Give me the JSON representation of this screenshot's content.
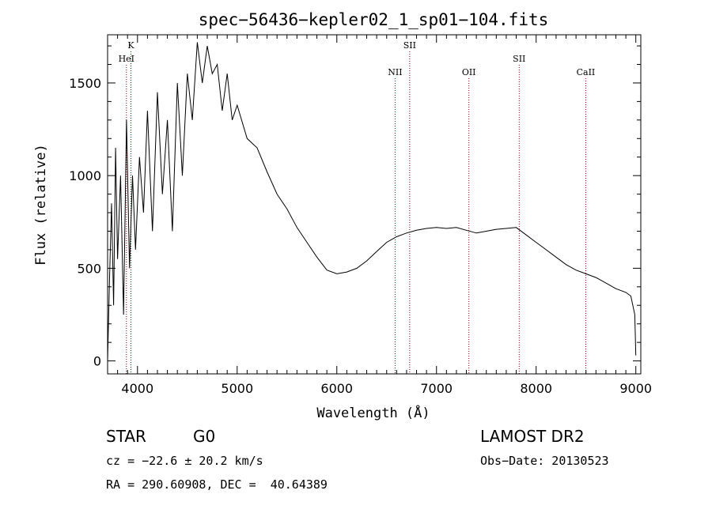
{
  "chart_data": {
    "type": "line",
    "title": "spec−56436−kepler02_1_sp01−104.fits",
    "xlabel": "Wavelength (Å)",
    "ylabel": "Flux (relative)",
    "xlim": [
      3700,
      9050
    ],
    "ylim": [
      -70,
      1760
    ],
    "x_ticks": [
      4000,
      5000,
      6000,
      7000,
      8000,
      9000
    ],
    "y_ticks": [
      0,
      500,
      1000,
      1500
    ],
    "grid": false,
    "series": [
      {
        "x": [
          3700,
          3720,
          3740,
          3760,
          3780,
          3800,
          3830,
          3860,
          3890,
          3920,
          3950,
          3980,
          4020,
          4060,
          4100,
          4150,
          4200,
          4250,
          4300,
          4350,
          4400,
          4450,
          4500,
          4550,
          4600,
          4650,
          4700,
          4750,
          4800,
          4850,
          4900,
          4950,
          5000,
          5100,
          5200,
          5300,
          5400,
          5500,
          5600,
          5700,
          5800,
          5900,
          6000,
          6100,
          6200,
          6300,
          6400,
          6500,
          6600,
          6700,
          6800,
          6900,
          7000,
          7100,
          7200,
          7300,
          7400,
          7500,
          7600,
          7700,
          7800,
          7900,
          8000,
          8100,
          8200,
          8300,
          8400,
          8500,
          8600,
          8700,
          8800,
          8900,
          8950,
          8990,
          9000
        ],
        "y": [
          0,
          450,
          850,
          300,
          1150,
          550,
          1000,
          250,
          1300,
          500,
          1000,
          600,
          1100,
          800,
          1350,
          700,
          1450,
          900,
          1300,
          700,
          1500,
          1000,
          1550,
          1300,
          1720,
          1500,
          1700,
          1550,
          1600,
          1350,
          1550,
          1300,
          1380,
          1200,
          1150,
          1020,
          900,
          820,
          720,
          640,
          560,
          490,
          470,
          480,
          500,
          540,
          590,
          640,
          670,
          690,
          705,
          715,
          720,
          715,
          720,
          705,
          690,
          700,
          710,
          715,
          720,
          680,
          640,
          600,
          560,
          520,
          490,
          470,
          450,
          420,
          390,
          370,
          350,
          250,
          30
        ]
      }
    ],
    "spectral_lines": [
      {
        "label": "K",
        "x": 3934,
        "row": 0
      },
      {
        "label": "HeI",
        "x": 3889,
        "row": 1
      },
      {
        "label": "NII",
        "x": 6585,
        "row": 2
      },
      {
        "label": "SII",
        "x": 6731,
        "row": 0
      },
      {
        "label": "OII",
        "x": 7325,
        "row": 2
      },
      {
        "label": "SII",
        "x": 7830,
        "row": 1
      },
      {
        "label": "CaII",
        "x": 8498,
        "row": 2
      }
    ]
  },
  "info": {
    "object_type": "STAR",
    "subclass": "G0",
    "survey": "LAMOST DR2",
    "cz": "cz = −22.6 ± 20.2 km/s",
    "obs_date": "Obs−Date: 20130523",
    "coords": "RA = 290.60908, DEC =  40.64389"
  },
  "colors": {
    "spectrum": "#000000",
    "line_markers": "#8b0000",
    "frame": "#000000"
  }
}
